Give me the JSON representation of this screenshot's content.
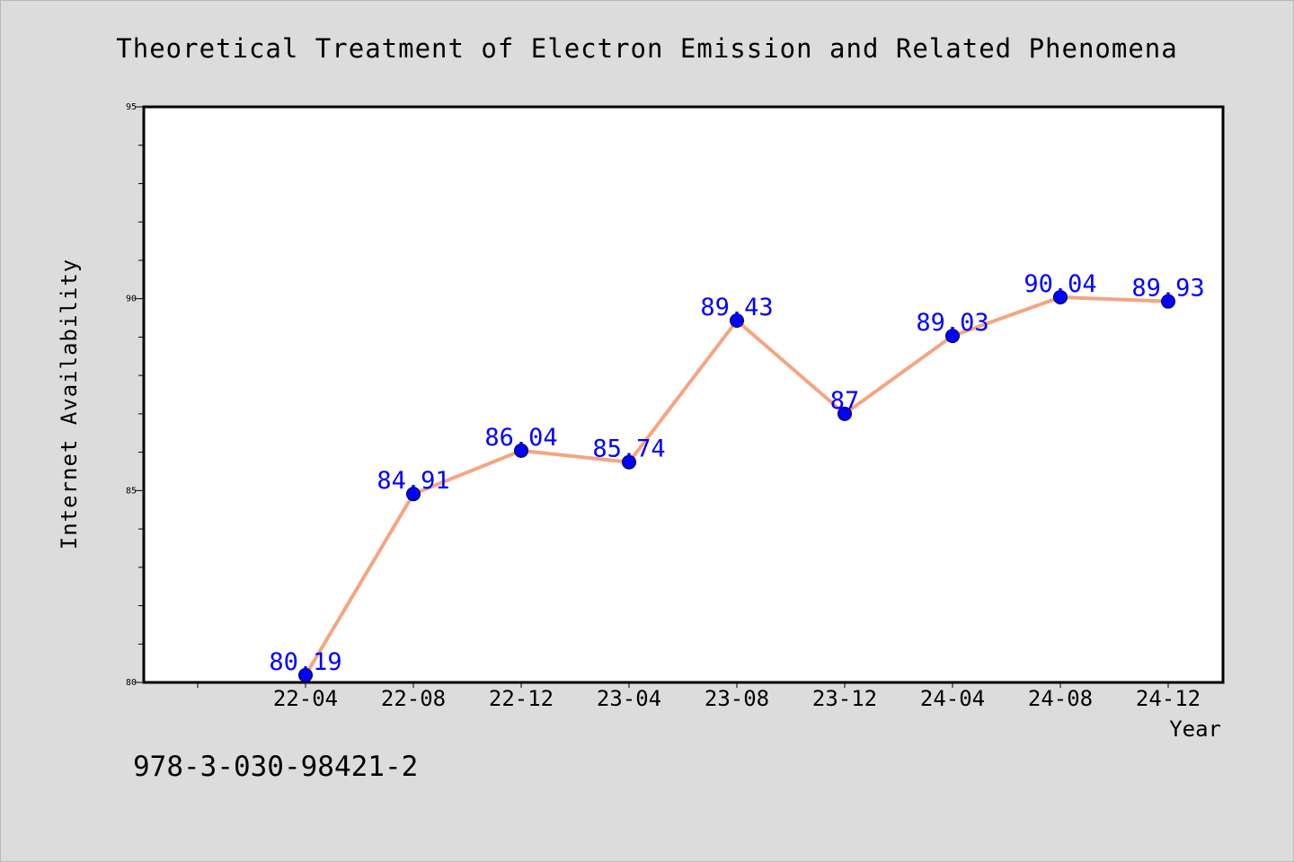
{
  "chart_data": {
    "type": "line",
    "title": "Theoretical Treatment of Electron Emission and Related Phenomena",
    "xlabel": "Year",
    "ylabel": "Internet Availability",
    "categories": [
      "22-04",
      "22-08",
      "22-12",
      "23-04",
      "23-08",
      "23-12",
      "24-04",
      "24-08",
      "24-12"
    ],
    "series": [
      {
        "values": [
          80.19,
          84.91,
          86.04,
          85.74,
          89.43,
          87,
          89.03,
          90.04,
          89.93
        ],
        "labels": [
          "80.19",
          "84.91",
          "86.04",
          "85.74",
          "89.43",
          "87",
          "89.03",
          "90.04",
          "89.93"
        ]
      }
    ],
    "ylim": [
      80,
      95
    ],
    "yticks": [
      "80",
      "85",
      "90",
      "95"
    ],
    "grid": false,
    "legend": "none",
    "colors": {
      "line": "#f4a582",
      "marker": "#0000ff",
      "label": "#0000ff",
      "background": "#dcdcdc",
      "plot_area": "#ffffff"
    }
  },
  "footer": {
    "isbn": "978-3-030-98421-2"
  }
}
